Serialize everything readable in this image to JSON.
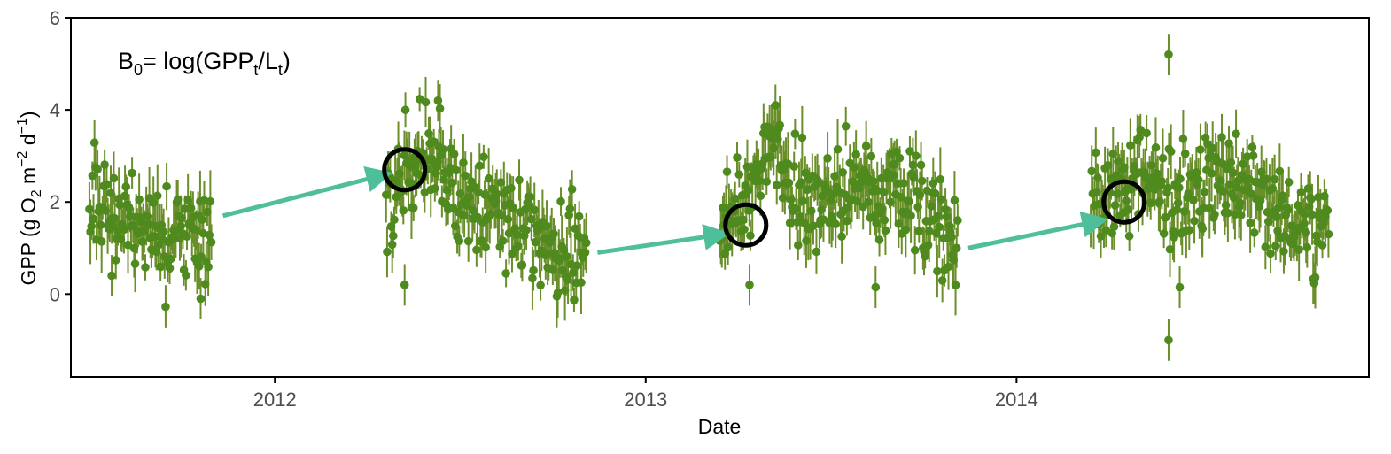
{
  "colors": {
    "point": "#4f8a1e",
    "errorbar": "#6a8f2a",
    "arrow": "#4fbf9b",
    "circle": "#000000",
    "axis": "#000000",
    "tick_text": "#4d4d4d"
  },
  "annotation": {
    "formula_parts": [
      "B",
      "0",
      "= log(GPP",
      "t",
      "/L",
      "t",
      ")"
    ]
  },
  "chart_data": {
    "type": "scatter",
    "title": "",
    "xlabel": "Date",
    "ylabel_parts": [
      "GPP (g  O",
      "2",
      " m",
      "−2",
      " d",
      "−1",
      ")"
    ],
    "xlim": [
      2011.45,
      2014.95
    ],
    "ylim": [
      -1.8,
      6.0
    ],
    "x_ticks": [
      2012,
      2013,
      2014
    ],
    "x_tick_labels": [
      "2012",
      "2013",
      "2014"
    ],
    "y_ticks": [
      0,
      2,
      4,
      6
    ],
    "y_tick_labels": [
      "0",
      "2",
      "4",
      "6"
    ],
    "grid": false,
    "errorbars": true,
    "seasons": [
      {
        "name": "2011",
        "start": 2011.5,
        "end": 2011.83,
        "trend": [
          [
            2011.5,
            2.1
          ],
          [
            2011.55,
            1.8
          ],
          [
            2011.62,
            1.4
          ],
          [
            2011.72,
            1.3
          ],
          [
            2011.83,
            1.3
          ]
        ]
      },
      {
        "name": "2012",
        "start": 2012.3,
        "end": 2012.84,
        "trend": [
          [
            2012.3,
            2.2
          ],
          [
            2012.36,
            2.7
          ],
          [
            2012.42,
            3.1
          ],
          [
            2012.47,
            2.4
          ],
          [
            2012.55,
            1.8
          ],
          [
            2012.7,
            1.3
          ],
          [
            2012.84,
            0.8
          ]
        ]
      },
      {
        "name": "2013",
        "start": 2013.2,
        "end": 2013.84,
        "trend": [
          [
            2013.2,
            1.2
          ],
          [
            2013.27,
            2.0
          ],
          [
            2013.33,
            3.2
          ],
          [
            2013.4,
            2.1
          ],
          [
            2013.55,
            2.2
          ],
          [
            2013.66,
            2.4
          ],
          [
            2013.76,
            1.8
          ],
          [
            2013.84,
            1.1
          ]
        ]
      },
      {
        "name": "2014",
        "start": 2014.2,
        "end": 2014.84,
        "trend": [
          [
            2014.2,
            1.8
          ],
          [
            2014.28,
            2.3
          ],
          [
            2014.35,
            2.8
          ],
          [
            2014.43,
            1.8
          ],
          [
            2014.5,
            2.5
          ],
          [
            2014.62,
            2.4
          ],
          [
            2014.72,
            1.8
          ],
          [
            2014.84,
            1.6
          ]
        ]
      }
    ],
    "highlighted_points": [
      {
        "x": 2012.35,
        "y": 2.7
      },
      {
        "x": 2013.27,
        "y": 1.5
      },
      {
        "x": 2014.29,
        "y": 2.0
      }
    ],
    "arrows": [
      {
        "from": [
          2011.86,
          1.7
        ],
        "to": [
          2012.3,
          2.6
        ]
      },
      {
        "from": [
          2012.87,
          0.9
        ],
        "to": [
          2013.21,
          1.3
        ]
      },
      {
        "from": [
          2013.87,
          1.0
        ],
        "to": [
          2014.23,
          1.6
        ]
      }
    ],
    "notable_points": [
      {
        "x": 2011.56,
        "y": 0.4
      },
      {
        "x": 2011.8,
        "y": -0.1
      },
      {
        "x": 2012.35,
        "y": 0.2
      },
      {
        "x": 2012.44,
        "y": 4.2
      },
      {
        "x": 2013.28,
        "y": 0.2
      },
      {
        "x": 2013.35,
        "y": 4.1
      },
      {
        "x": 2013.62,
        "y": 0.15
      },
      {
        "x": 2014.41,
        "y": 5.2
      },
      {
        "x": 2014.41,
        "y": -1.0
      },
      {
        "x": 2014.44,
        "y": 0.15
      }
    ]
  }
}
